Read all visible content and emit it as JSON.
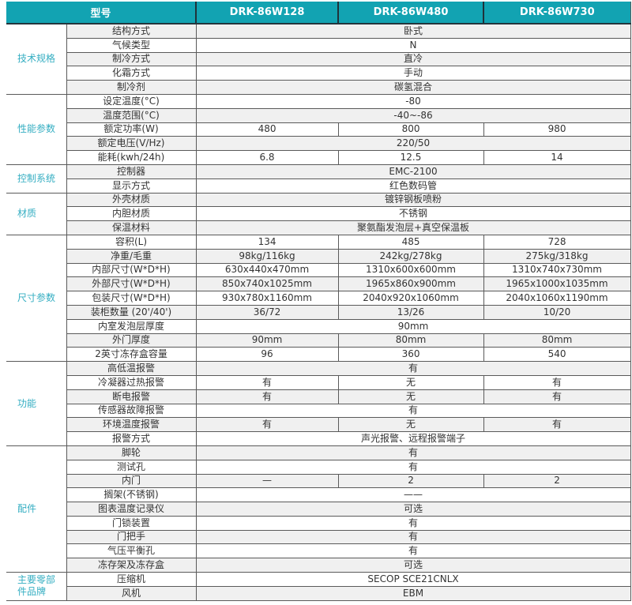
{
  "colors": {
    "header_bg": "#12a3b2",
    "header_divider": "#20323a",
    "category_text": "#35aec2",
    "row_alt_bg": "#f0f0f0",
    "grid_border": "#5a5a5a",
    "body_text": "#333333"
  },
  "header": {
    "model_label": "型号",
    "models": [
      "DRK-86W128",
      "DRK-86W480",
      "DRK-86W730"
    ]
  },
  "sections": [
    {
      "category": "技术规格",
      "rows": [
        {
          "label": "结构方式",
          "span": "卧式"
        },
        {
          "label": "气候类型",
          "span": "N"
        },
        {
          "label": "制冷方式",
          "span": "直冷"
        },
        {
          "label": "化霜方式",
          "span": "手动"
        },
        {
          "label": "制冷剂",
          "span": "碳氢混合"
        }
      ]
    },
    {
      "category": "性能参数",
      "rows": [
        {
          "label": "设定温度(°C)",
          "span": "-80"
        },
        {
          "label": "温度范围(°C)",
          "span": "-40~-86"
        },
        {
          "label": "额定功率(W)",
          "values": [
            "480",
            "800",
            "980"
          ]
        },
        {
          "label": "额定电压(V/Hz)",
          "span": "220/50"
        },
        {
          "label": "能耗(kwh/24h)",
          "values": [
            "6.8",
            "12.5",
            "14"
          ]
        }
      ]
    },
    {
      "category": "控制系统",
      "rows": [
        {
          "label": "控制器",
          "span": "EMC-2100"
        },
        {
          "label": "显示方式",
          "span": "红色数码管"
        }
      ]
    },
    {
      "category": "材质",
      "rows": [
        {
          "label": "外壳材质",
          "span": "镀锌钢板喷粉"
        },
        {
          "label": "内胆材质",
          "span": "不锈钢"
        },
        {
          "label": "保温材料",
          "span": "聚氨酯发泡层+真空保温板"
        }
      ]
    },
    {
      "category": "尺寸参数",
      "rows": [
        {
          "label": "容积(L)",
          "values": [
            "134",
            "485",
            "728"
          ]
        },
        {
          "label": "净重/毛重",
          "values": [
            "98kg/116kg",
            "242kg/278kg",
            "275kg/318kg"
          ]
        },
        {
          "label": "内部尺寸(W*D*H)",
          "values": [
            "630x440x470mm",
            "1310x600x600mm",
            "1310x740x730mm"
          ]
        },
        {
          "label": "外部尺寸(W*D*H)",
          "values": [
            "850x740x1025mm",
            "1965x860x900mm",
            "1965x1000x1035mm"
          ]
        },
        {
          "label": "包装尺寸(W*D*H)",
          "values": [
            "930x780x1160mm",
            "2040x920x1060mm",
            "2040x1060x1190mm"
          ]
        },
        {
          "label": "装柜数量 (20'/40')",
          "values": [
            "36/72",
            "13/26",
            "10/20"
          ]
        },
        {
          "label": "内室发泡层厚度",
          "span": "90mm"
        },
        {
          "label": "外门厚度",
          "values": [
            "90mm",
            "80mm",
            "80mm"
          ]
        },
        {
          "label": "2英寸冻存盒容量",
          "values": [
            "96",
            "360",
            "540"
          ]
        }
      ]
    },
    {
      "category": "功能",
      "rows": [
        {
          "label": "高低温报警",
          "span": "有"
        },
        {
          "label": "冷凝器过热报警",
          "values": [
            "有",
            "无",
            "有"
          ]
        },
        {
          "label": "断电报警",
          "values": [
            "有",
            "无",
            "有"
          ]
        },
        {
          "label": "传感器故障报警",
          "span": "有"
        },
        {
          "label": "环境温度报警",
          "values": [
            "有",
            "无",
            "有"
          ]
        },
        {
          "label": "报警方式",
          "span": "声光报警、远程报警端子"
        }
      ]
    },
    {
      "category": "配件",
      "rows": [
        {
          "label": "脚轮",
          "span": "有"
        },
        {
          "label": "测试孔",
          "span": "有"
        },
        {
          "label": "内门",
          "values": [
            "—",
            "2",
            "2"
          ]
        },
        {
          "label": "搁架(不锈钢)",
          "span": "——"
        },
        {
          "label": "图表温度记录仪",
          "span": "可选"
        },
        {
          "label": "门锁装置",
          "span": "有"
        },
        {
          "label": "门把手",
          "span": "有"
        },
        {
          "label": "气压平衡孔",
          "span": "有"
        },
        {
          "label": "冻存架及冻存盒",
          "span": "可选"
        }
      ]
    },
    {
      "category": "主要零部件品牌",
      "rows": [
        {
          "label": "压缩机",
          "span": "SECOP SCE21CNLX"
        },
        {
          "label": "风机",
          "span": "EBM"
        }
      ]
    }
  ]
}
